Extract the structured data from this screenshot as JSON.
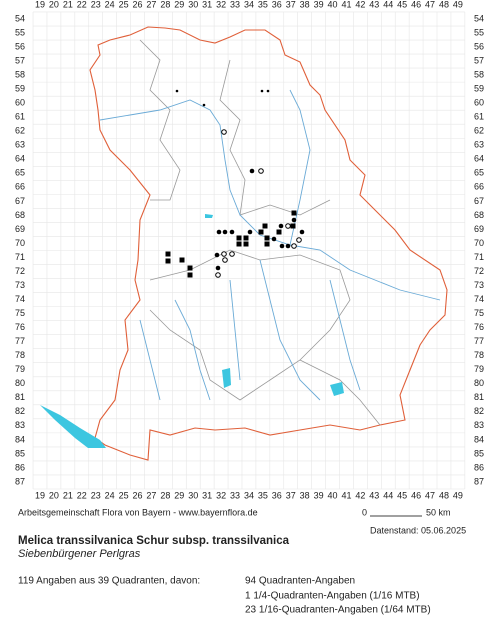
{
  "map": {
    "columns": [
      19,
      20,
      21,
      22,
      23,
      24,
      25,
      26,
      27,
      28,
      29,
      30,
      31,
      32,
      33,
      34,
      35,
      36,
      37,
      38,
      39,
      40,
      41,
      42,
      43,
      44,
      45,
      46,
      47,
      48,
      49
    ],
    "rows": [
      54,
      55,
      56,
      57,
      58,
      59,
      60,
      61,
      62,
      63,
      64,
      65,
      66,
      67,
      68,
      69,
      70,
      71,
      72,
      73,
      74,
      75,
      76,
      77,
      78,
      79,
      80,
      81,
      82,
      83,
      84,
      85,
      86,
      87
    ],
    "credit": "Arbeitsgemeinschaft Flora von Bayern - www.bayernflora.de",
    "scale_start": "0",
    "scale_end": "50 km",
    "data_date": "Datenstand: 05.06.2025"
  },
  "species": {
    "name": "Melica transsilvanica Schur subsp. transsilvanica",
    "common_name": "Siebenbürgener Perlgras"
  },
  "summary": {
    "total": "119 Angaben aus 39 Quadranten, davon:",
    "lines": [
      "94 Quadranten-Angaben",
      "1 1/4-Quadranten-Angaben (1/16 MTB)",
      "23 1/16-Quadranten-Angaben (1/64 MTB)"
    ]
  }
}
